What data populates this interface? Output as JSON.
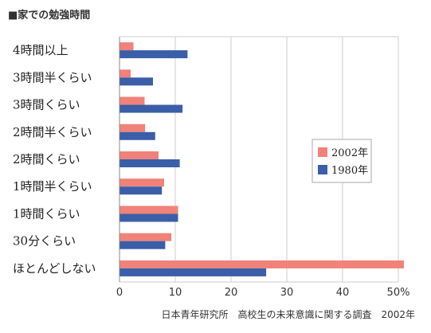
{
  "page": {
    "title": "■家での勉強時間",
    "source": "日本青年研究所　高校生の未来意識に関する調査　2002年"
  },
  "chart_data": {
    "type": "bar",
    "orientation": "horizontal",
    "categories": [
      "4時間以上",
      "3時間半くらい",
      "3時間くらい",
      "2時間半くらい",
      "2時間くらい",
      "1時間半くらい",
      "1時間くらい",
      "30分くらい",
      "ほとんどしない"
    ],
    "series": [
      {
        "name": "2002年",
        "color": "#f0827a",
        "values": [
          2.5,
          2.0,
          4.5,
          4.6,
          7.0,
          8.0,
          10.5,
          9.3,
          51.0
        ]
      },
      {
        "name": "1980年",
        "color": "#3a5ea8",
        "values": [
          12.2,
          6.0,
          11.3,
          6.4,
          10.8,
          7.6,
          10.5,
          8.2,
          26.3
        ]
      }
    ],
    "x_ticks": [
      "0",
      "10",
      "20",
      "30",
      "40",
      "50%"
    ],
    "xlim": [
      0,
      50
    ],
    "grid": "vertical",
    "legend_position": "right"
  }
}
